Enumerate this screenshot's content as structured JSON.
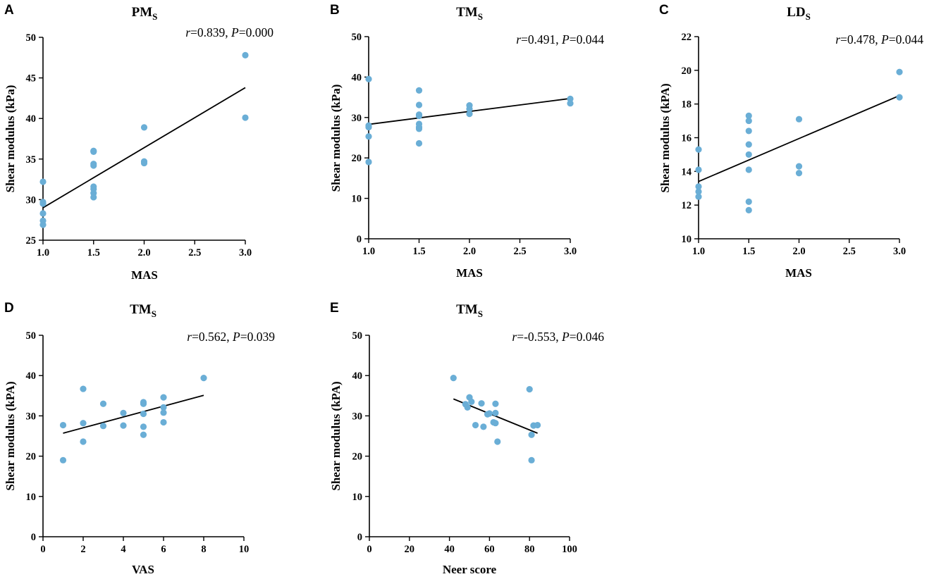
{
  "figure": {
    "accent_color": "#6aaed6",
    "line_color": "#000000"
  },
  "chart_data": [
    {
      "id": "A",
      "type": "scatter",
      "panel_letter": "A",
      "title_main": "PM",
      "title_sub": "S",
      "xlabel": "MAS",
      "ylabel": "Shear modulus (kPa)",
      "xlim": [
        1.0,
        3.0
      ],
      "ylim": [
        25,
        50
      ],
      "xticks": [
        "1.0",
        "1.5",
        "2.0",
        "2.5",
        "3.0"
      ],
      "yticks": [
        "25",
        "30",
        "35",
        "40",
        "45",
        "50"
      ],
      "stat_r_label": "r",
      "stat_r_value": "=0.839, ",
      "stat_p_label": "P",
      "stat_p_value": "=0.000",
      "points": [
        [
          1.0,
          32.2
        ],
        [
          1.0,
          29.7
        ],
        [
          1.0,
          29.5
        ],
        [
          1.0,
          28.3
        ],
        [
          1.0,
          27.4
        ],
        [
          1.0,
          26.9
        ],
        [
          1.5,
          36.0
        ],
        [
          1.5,
          35.9
        ],
        [
          1.5,
          34.4
        ],
        [
          1.5,
          34.2
        ],
        [
          1.5,
          31.6
        ],
        [
          1.5,
          31.3
        ],
        [
          1.5,
          30.8
        ],
        [
          1.5,
          30.3
        ],
        [
          2.0,
          38.9
        ],
        [
          2.0,
          34.7
        ],
        [
          2.0,
          34.5
        ],
        [
          3.0,
          47.8
        ],
        [
          3.0,
          40.1
        ]
      ],
      "fit": [
        [
          1.0,
          29.0
        ],
        [
          3.0,
          43.8
        ]
      ]
    },
    {
      "id": "B",
      "type": "scatter",
      "panel_letter": "B",
      "title_main": "TM",
      "title_sub": "S",
      "xlabel": "MAS",
      "ylabel": "Shear modulus (kPa)",
      "xlim": [
        1.0,
        3.0
      ],
      "ylim": [
        0,
        50
      ],
      "xticks": [
        "1.0",
        "1.5",
        "2.0",
        "2.5",
        "3.0"
      ],
      "yticks": [
        "0",
        "10",
        "20",
        "30",
        "40",
        "50"
      ],
      "stat_r_label": "r",
      "stat_r_value": "=0.491, ",
      "stat_p_label": "P",
      "stat_p_value": "=0.044",
      "points": [
        [
          1.0,
          39.5
        ],
        [
          1.0,
          28.0
        ],
        [
          1.0,
          27.6
        ],
        [
          1.0,
          25.3
        ],
        [
          1.0,
          19.0
        ],
        [
          1.5,
          36.7
        ],
        [
          1.5,
          33.1
        ],
        [
          1.5,
          30.7
        ],
        [
          1.5,
          30.4
        ],
        [
          1.5,
          28.4
        ],
        [
          1.5,
          27.6
        ],
        [
          1.5,
          27.2
        ],
        [
          1.5,
          23.6
        ],
        [
          2.0,
          33.0
        ],
        [
          2.0,
          32.1
        ],
        [
          2.0,
          30.9
        ],
        [
          3.0,
          34.6
        ],
        [
          3.0,
          33.5
        ]
      ],
      "fit": [
        [
          1.0,
          28.3
        ],
        [
          3.0,
          34.7
        ]
      ]
    },
    {
      "id": "C",
      "type": "scatter",
      "panel_letter": "C",
      "title_main": "LD",
      "title_sub": "S",
      "xlabel": "MAS",
      "ylabel": "Shear modulus (kPA)",
      "xlim": [
        1.0,
        3.0
      ],
      "ylim": [
        10,
        22
      ],
      "xticks": [
        "1.0",
        "1.5",
        "2.0",
        "2.5",
        "3.0"
      ],
      "yticks": [
        "10",
        "12",
        "14",
        "16",
        "18",
        "20",
        "22"
      ],
      "stat_r_label": "r",
      "stat_r_value": "=0.478, ",
      "stat_p_label": "P",
      "stat_p_value": "=0.044",
      "points": [
        [
          1.0,
          15.3
        ],
        [
          1.0,
          14.1
        ],
        [
          1.0,
          13.1
        ],
        [
          1.0,
          12.8
        ],
        [
          1.0,
          12.5
        ],
        [
          1.5,
          17.3
        ],
        [
          1.5,
          17.0
        ],
        [
          1.5,
          16.4
        ],
        [
          1.5,
          15.6
        ],
        [
          1.5,
          15.0
        ],
        [
          1.5,
          14.1
        ],
        [
          1.5,
          12.2
        ],
        [
          1.5,
          11.7
        ],
        [
          2.0,
          17.1
        ],
        [
          2.0,
          14.3
        ],
        [
          2.0,
          13.9
        ],
        [
          3.0,
          19.9
        ],
        [
          3.0,
          18.4
        ]
      ],
      "fit": [
        [
          1.0,
          13.4
        ],
        [
          3.0,
          18.5
        ]
      ]
    },
    {
      "id": "D",
      "type": "scatter",
      "panel_letter": "D",
      "title_main": "TM",
      "title_sub": "S",
      "xlabel": "VAS",
      "ylabel": "Shear modulus (kPA)",
      "xlim": [
        0,
        10
      ],
      "ylim": [
        0,
        50
      ],
      "xticks": [
        "0",
        "2",
        "4",
        "6",
        "8",
        "10"
      ],
      "yticks": [
        "0",
        "10",
        "20",
        "30",
        "40",
        "50"
      ],
      "stat_r_label": "r",
      "stat_r_value": "=0.562, ",
      "stat_p_label": "P",
      "stat_p_value": "=0.039",
      "points": [
        [
          1,
          27.7
        ],
        [
          1,
          19.0
        ],
        [
          2,
          36.7
        ],
        [
          2,
          28.2
        ],
        [
          2,
          23.6
        ],
        [
          3,
          33.0
        ],
        [
          3,
          27.5
        ],
        [
          4,
          30.7
        ],
        [
          4,
          27.6
        ],
        [
          5,
          33.4
        ],
        [
          5,
          33.0
        ],
        [
          5,
          30.5
        ],
        [
          5,
          27.3
        ],
        [
          5,
          25.3
        ],
        [
          6,
          34.6
        ],
        [
          6,
          32.1
        ],
        [
          6,
          30.8
        ],
        [
          6,
          28.4
        ],
        [
          8,
          39.4
        ]
      ],
      "fit": [
        [
          1,
          25.7
        ],
        [
          8,
          35.1
        ]
      ]
    },
    {
      "id": "E",
      "type": "scatter",
      "panel_letter": "E",
      "title_main": "TM",
      "title_sub": "S",
      "xlabel": "Neer score",
      "ylabel": "Shear modulus (kPA)",
      "xlim": [
        0,
        100
      ],
      "ylim": [
        0,
        50
      ],
      "xticks": [
        "0",
        "20",
        "40",
        "60",
        "80",
        "100"
      ],
      "yticks": [
        "0",
        "10",
        "20",
        "30",
        "40",
        "50"
      ],
      "stat_r_label": "r",
      "stat_r_value": "=-0.553, ",
      "stat_p_label": "P",
      "stat_p_value": "=0.046",
      "points": [
        [
          42,
          39.4
        ],
        [
          48,
          32.9
        ],
        [
          49,
          32.1
        ],
        [
          50,
          34.6
        ],
        [
          51,
          33.5
        ],
        [
          53,
          27.7
        ],
        [
          56,
          33.1
        ],
        [
          57,
          27.3
        ],
        [
          59,
          30.4
        ],
        [
          60,
          30.6
        ],
        [
          62,
          28.4
        ],
        [
          63,
          33.0
        ],
        [
          63,
          30.7
        ],
        [
          63,
          28.2
        ],
        [
          64,
          23.6
        ],
        [
          80,
          36.6
        ],
        [
          81,
          25.3
        ],
        [
          81,
          19.0
        ],
        [
          82,
          27.6
        ],
        [
          84,
          27.7
        ]
      ],
      "fit": [
        [
          42,
          34.2
        ],
        [
          84,
          25.7
        ]
      ]
    }
  ]
}
